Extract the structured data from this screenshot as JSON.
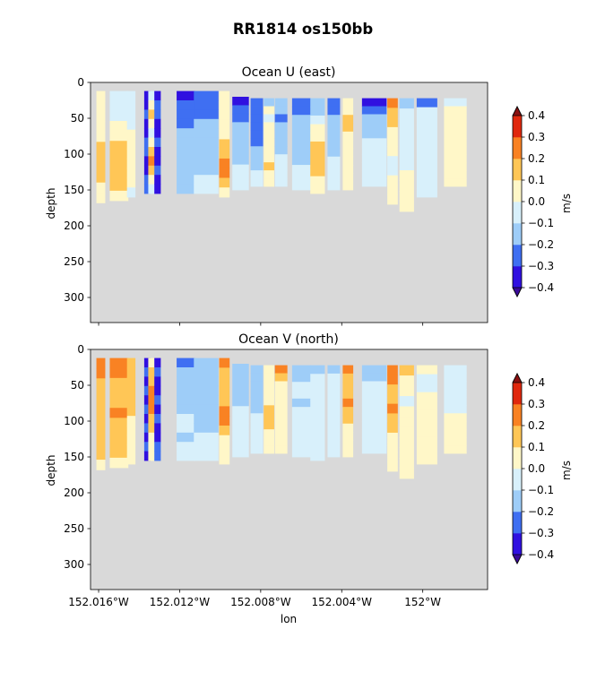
{
  "figure": {
    "title": "RR1814 os150bb"
  },
  "colors": {
    "background": "#d9d9d9",
    "levels": [
      {
        "lo": -0.4,
        "hi": -0.3,
        "color": "#3010e0"
      },
      {
        "lo": -0.3,
        "hi": -0.2,
        "color": "#3f6ff2"
      },
      {
        "lo": -0.2,
        "hi": -0.1,
        "color": "#9ecdf8"
      },
      {
        "lo": -0.1,
        "hi": 0.0,
        "color": "#d8f0fb"
      },
      {
        "lo": 0.0,
        "hi": 0.1,
        "color": "#fff7c8"
      },
      {
        "lo": 0.1,
        "hi": 0.2,
        "color": "#ffc656"
      },
      {
        "lo": 0.2,
        "hi": 0.3,
        "color": "#f98223"
      },
      {
        "lo": 0.3,
        "hi": 0.4,
        "color": "#e0280e"
      }
    ],
    "under": "#3a0a9a",
    "over": "#8a1010"
  },
  "chart_data": [
    {
      "type": "heatmap",
      "title": "Ocean U (east)",
      "xlabel": "",
      "ylabel": "depth",
      "colorbar_label": "m/s",
      "colorbar_ticks": [
        "0.4",
        "0.3",
        "0.2",
        "0.1",
        "0.0",
        "−0.1",
        "−0.2",
        "−0.3",
        "−0.4"
      ],
      "y_ticks": [
        "0",
        "50",
        "100",
        "150",
        "200",
        "250",
        "300"
      ],
      "ylim": [
        335,
        0
      ],
      "xlim": [
        -152.0164,
        -151.9968
      ],
      "x_ticks": [
        -152.016,
        -152.012,
        -152.008,
        -152.004,
        -152.0
      ],
      "x_tick_labels": [
        "",
        "",
        "",
        "",
        ""
      ],
      "profiles": [
        {
          "lon": -152.0159,
          "w": 0.00042,
          "top": 12,
          "bottom": 168,
          "values": [
            0.05,
            0.05,
            0.05,
            0.05,
            0.08,
            0.12,
            0.15,
            0.15,
            0.12,
            0.08,
            0.05
          ]
        },
        {
          "lon": -152.015,
          "w": 0.0009,
          "top": 12,
          "bottom": 165,
          "values": [
            -0.05,
            -0.05,
            -0.05,
            0.02,
            0.05,
            0.12,
            0.15,
            0.15,
            0.15,
            0.12,
            0.05
          ]
        },
        {
          "lon": -152.0144,
          "w": 0.0004,
          "top": 12,
          "bottom": 160,
          "values": [
            -0.05,
            -0.05,
            -0.05,
            -0.05,
            0.02,
            0.05,
            0.05,
            0.05,
            0.05,
            0.03,
            -0.02
          ]
        },
        {
          "lon": -152.0136,
          "w": 0.0003,
          "top": 12,
          "bottom": 155,
          "values": [
            -0.35,
            -0.35,
            -0.3,
            -0.35,
            -0.35,
            -0.3,
            -0.3,
            -0.35,
            -0.35,
            -0.3,
            -0.3
          ]
        },
        {
          "lon": -152.0134,
          "w": 0.0003,
          "top": 12,
          "bottom": 155,
          "values": [
            -0.1,
            0.05,
            0.1,
            0.05,
            -0.05,
            0.05,
            0.12,
            0.2,
            0.12,
            0.05,
            -0.05
          ]
        },
        {
          "lon": -152.0131,
          "w": 0.0003,
          "top": 12,
          "bottom": 155,
          "values": [
            -0.35,
            -0.3,
            -0.3,
            -0.35,
            -0.35,
            -0.3,
            -0.35,
            -0.35,
            -0.3,
            -0.35,
            -0.35
          ]
        },
        {
          "lon": -152.0117,
          "w": 0.0009,
          "top": 12,
          "bottom": 155,
          "values": [
            -0.35,
            -0.3,
            -0.25,
            -0.25,
            -0.15,
            -0.15,
            -0.15,
            -0.15,
            -0.15,
            -0.15,
            -0.15
          ]
        },
        {
          "lon": -152.0107,
          "w": 0.0012,
          "top": 12,
          "bottom": 155,
          "values": [
            -0.25,
            -0.25,
            -0.25,
            -0.2,
            -0.2,
            -0.15,
            -0.15,
            -0.15,
            -0.15,
            -0.1,
            -0.1
          ]
        },
        {
          "lon": -152.0098,
          "w": 0.0005,
          "top": 12,
          "bottom": 160,
          "values": [
            0.05,
            0.05,
            0.05,
            0.05,
            0.05,
            0.12,
            0.15,
            0.2,
            0.2,
            0.12,
            0.05
          ]
        },
        {
          "lon": -152.009,
          "w": 0.0008,
          "top": 20,
          "bottom": 150,
          "values": [
            -0.35,
            -0.25,
            -0.25,
            -0.2,
            -0.2,
            -0.15,
            -0.15,
            -0.15,
            -0.1,
            -0.1,
            -0.05
          ]
        },
        {
          "lon": -152.0082,
          "w": 0.0006,
          "top": 22,
          "bottom": 145,
          "values": [
            -0.3,
            -0.25,
            -0.25,
            -0.25,
            -0.25,
            -0.25,
            -0.15,
            -0.15,
            -0.15,
            -0.1,
            -0.05
          ]
        },
        {
          "lon": -152.0076,
          "w": 0.0005,
          "top": 22,
          "bottom": 145,
          "values": [
            -0.2,
            0.05,
            -0.05,
            0.02,
            0.05,
            0.05,
            0.05,
            0.08,
            0.12,
            0.05,
            0.02
          ]
        },
        {
          "lon": -152.007,
          "w": 0.0006,
          "top": 22,
          "bottom": 145,
          "values": [
            -0.2,
            -0.2,
            -0.25,
            -0.2,
            -0.15,
            -0.15,
            -0.15,
            -0.1,
            -0.1,
            -0.1,
            -0.05
          ]
        },
        {
          "lon": -152.006,
          "w": 0.0009,
          "top": 22,
          "bottom": 150,
          "values": [
            -0.3,
            -0.25,
            -0.15,
            -0.15,
            -0.15,
            -0.15,
            -0.15,
            -0.15,
            -0.1,
            -0.1,
            -0.05
          ]
        },
        {
          "lon": -152.0052,
          "w": 0.0007,
          "top": 22,
          "bottom": 155,
          "values": [
            -0.2,
            -0.15,
            -0.05,
            0.02,
            0.05,
            0.12,
            0.15,
            0.15,
            0.12,
            0.05,
            0.02
          ]
        },
        {
          "lon": -152.0044,
          "w": 0.0006,
          "top": 22,
          "bottom": 150,
          "values": [
            -0.3,
            -0.25,
            -0.2,
            -0.15,
            -0.15,
            -0.15,
            -0.15,
            -0.1,
            -0.1,
            -0.05,
            -0.05
          ]
        },
        {
          "lon": -152.0037,
          "w": 0.0005,
          "top": 22,
          "bottom": 150,
          "values": [
            0.02,
            0.08,
            0.12,
            0.15,
            0.08,
            0.05,
            0.05,
            0.05,
            0.05,
            0.03,
            0.02
          ]
        },
        {
          "lon": -152.0024,
          "w": 0.0012,
          "top": 22,
          "bottom": 145,
          "values": [
            -0.35,
            -0.25,
            -0.15,
            -0.15,
            -0.15,
            -0.1,
            -0.1,
            -0.1,
            -0.1,
            -0.05,
            -0.05
          ]
        },
        {
          "lon": -152.0015,
          "w": 0.0005,
          "top": 22,
          "bottom": 170,
          "values": [
            0.2,
            0.15,
            0.12,
            0.05,
            0.02,
            0.02,
            -0.05,
            -0.05,
            0.02,
            0.03,
            0.03
          ]
        },
        {
          "lon": -152.0008,
          "w": 0.0007,
          "top": 22,
          "bottom": 180,
          "values": [
            -0.2,
            -0.1,
            -0.1,
            -0.1,
            -0.05,
            -0.05,
            -0.05,
            0.02,
            0.05,
            0.05,
            0.05
          ]
        },
        {
          "lon": -151.9998,
          "w": 0.001,
          "top": 22,
          "bottom": 160,
          "values": [
            -0.25,
            -0.1,
            -0.05,
            -0.05,
            -0.05,
            -0.05,
            -0.05,
            -0.05,
            -0.05,
            -0.05,
            -0.05
          ]
        },
        {
          "lon": -151.9984,
          "w": 0.0011,
          "top": 22,
          "bottom": 145,
          "values": [
            -0.05,
            0.02,
            0.03,
            0.05,
            0.05,
            0.08,
            0.05,
            0.05,
            0.05,
            0.05,
            0.02
          ]
        }
      ]
    },
    {
      "type": "heatmap",
      "title": "Ocean V (north)",
      "xlabel": "lon",
      "ylabel": "depth",
      "colorbar_label": "m/s",
      "colorbar_ticks": [
        "0.4",
        "0.3",
        "0.2",
        "0.1",
        "0.0",
        "−0.1",
        "−0.2",
        "−0.3",
        "−0.4"
      ],
      "y_ticks": [
        "0",
        "50",
        "100",
        "150",
        "200",
        "250",
        "300"
      ],
      "ylim": [
        335,
        0
      ],
      "xlim": [
        -152.0164,
        -151.9968
      ],
      "x_ticks": [
        -152.016,
        -152.012,
        -152.008,
        -152.004,
        -152.0
      ],
      "x_tick_labels": [
        "152.016°W",
        "152.012°W",
        "152.008°W",
        "152.004°W",
        "152°W"
      ],
      "profiles": [
        {
          "lon": -152.0159,
          "w": 0.00042,
          "top": 12,
          "bottom": 168,
          "values": [
            0.22,
            0.2,
            0.18,
            0.15,
            0.15,
            0.15,
            0.15,
            0.12,
            0.12,
            0.1,
            0.05
          ]
        },
        {
          "lon": -152.015,
          "w": 0.0009,
          "top": 12,
          "bottom": 165,
          "values": [
            0.22,
            0.2,
            0.18,
            0.18,
            0.18,
            0.22,
            0.18,
            0.15,
            0.12,
            0.1,
            0.05
          ]
        },
        {
          "lon": -152.0144,
          "w": 0.0004,
          "top": 12,
          "bottom": 160,
          "values": [
            0.15,
            0.12,
            0.12,
            0.12,
            0.1,
            0.1,
            0.08,
            0.08,
            0.05,
            0.05,
            0.05
          ]
        },
        {
          "lon": -152.0136,
          "w": 0.0003,
          "top": 12,
          "bottom": 155,
          "values": [
            -0.35,
            -0.3,
            -0.35,
            -0.3,
            -0.35,
            -0.3,
            -0.35,
            -0.3,
            -0.35,
            -0.3,
            -0.35
          ]
        },
        {
          "lon": -152.0134,
          "w": 0.0003,
          "top": 12,
          "bottom": 155,
          "values": [
            0.05,
            0.12,
            0.15,
            0.2,
            0.25,
            0.2,
            0.15,
            0.12,
            0.08,
            0.05,
            0.02
          ]
        },
        {
          "lon": -152.0131,
          "w": 0.0003,
          "top": 12,
          "bottom": 155,
          "values": [
            -0.35,
            -0.3,
            -0.35,
            -0.35,
            -0.3,
            -0.35,
            -0.3,
            -0.35,
            -0.35,
            -0.3,
            -0.3
          ]
        },
        {
          "lon": -152.0117,
          "w": 0.0009,
          "top": 12,
          "bottom": 155,
          "values": [
            -0.25,
            -0.2,
            -0.15,
            -0.15,
            -0.15,
            -0.15,
            -0.1,
            -0.1,
            -0.15,
            -0.1,
            -0.1
          ]
        },
        {
          "lon": -152.0107,
          "w": 0.0012,
          "top": 12,
          "bottom": 155,
          "values": [
            -0.2,
            -0.15,
            -0.15,
            -0.15,
            -0.15,
            -0.15,
            -0.15,
            -0.15,
            -0.1,
            -0.1,
            -0.1
          ]
        },
        {
          "lon": -152.0098,
          "w": 0.0005,
          "top": 12,
          "bottom": 160,
          "values": [
            0.2,
            0.12,
            0.1,
            0.12,
            0.15,
            0.22,
            0.2,
            0.12,
            0.08,
            0.05,
            0.02
          ]
        },
        {
          "lon": -152.009,
          "w": 0.0008,
          "top": 20,
          "bottom": 150,
          "values": [
            -0.15,
            -0.15,
            -0.15,
            -0.15,
            -0.15,
            -0.1,
            -0.1,
            -0.1,
            -0.1,
            -0.1,
            -0.05
          ]
        },
        {
          "lon": -152.0082,
          "w": 0.0006,
          "top": 22,
          "bottom": 145,
          "values": [
            -0.15,
            -0.15,
            -0.15,
            -0.15,
            -0.15,
            -0.15,
            -0.1,
            -0.1,
            -0.1,
            -0.05,
            -0.05
          ]
        },
        {
          "lon": -152.0076,
          "w": 0.0005,
          "top": 22,
          "bottom": 145,
          "values": [
            0.05,
            0.05,
            0.05,
            0.05,
            0.08,
            0.12,
            0.15,
            0.12,
            0.08,
            0.05,
            0.02
          ]
        },
        {
          "lon": -152.007,
          "w": 0.0006,
          "top": 22,
          "bottom": 145,
          "values": [
            0.2,
            0.12,
            0.05,
            0.05,
            0.05,
            0.05,
            0.05,
            0.05,
            0.03,
            0.02,
            0.02
          ]
        },
        {
          "lon": -152.006,
          "w": 0.0009,
          "top": 22,
          "bottom": 150,
          "values": [
            -0.15,
            -0.15,
            -0.1,
            -0.1,
            -0.15,
            -0.1,
            -0.1,
            -0.1,
            -0.1,
            -0.05,
            -0.05
          ]
        },
        {
          "lon": -152.0052,
          "w": 0.0007,
          "top": 22,
          "bottom": 155,
          "values": [
            -0.2,
            -0.1,
            -0.05,
            -0.1,
            -0.05,
            -0.05,
            -0.05,
            -0.05,
            -0.05,
            -0.05,
            -0.05
          ]
        },
        {
          "lon": -152.0044,
          "w": 0.0006,
          "top": 22,
          "bottom": 150,
          "values": [
            -0.15,
            -0.1,
            -0.1,
            -0.1,
            -0.05,
            -0.05,
            -0.05,
            -0.05,
            -0.05,
            -0.05,
            -0.05
          ]
        },
        {
          "lon": -152.0037,
          "w": 0.0005,
          "top": 22,
          "bottom": 150,
          "values": [
            0.2,
            0.15,
            0.12,
            0.15,
            0.22,
            0.15,
            0.12,
            0.08,
            0.05,
            0.05,
            0.02
          ]
        },
        {
          "lon": -152.0024,
          "w": 0.0012,
          "top": 22,
          "bottom": 145,
          "values": [
            -0.15,
            -0.15,
            -0.1,
            -0.1,
            -0.05,
            -0.05,
            -0.05,
            -0.05,
            -0.05,
            -0.05,
            -0.05
          ]
        },
        {
          "lon": -152.0015,
          "w": 0.0005,
          "top": 22,
          "bottom": 170,
          "values": [
            0.25,
            0.2,
            0.15,
            0.15,
            0.2,
            0.15,
            0.12,
            0.08,
            0.05,
            0.05,
            0.02
          ]
        },
        {
          "lon": -152.0008,
          "w": 0.0007,
          "top": 22,
          "bottom": 180,
          "values": [
            0.15,
            0.05,
            0.02,
            -0.05,
            0.05,
            0.05,
            0.05,
            0.05,
            0.05,
            0.05,
            0.05
          ]
        },
        {
          "lon": -151.9998,
          "w": 0.001,
          "top": 22,
          "bottom": 160,
          "values": [
            0.02,
            -0.05,
            -0.05,
            0.03,
            0.05,
            0.05,
            0.05,
            0.05,
            0.05,
            0.05,
            0.05
          ]
        },
        {
          "lon": -151.9984,
          "w": 0.0011,
          "top": 22,
          "bottom": 145,
          "values": [
            -0.05,
            -0.05,
            -0.05,
            -0.05,
            -0.05,
            -0.05,
            0.02,
            0.05,
            0.05,
            0.05,
            0.05
          ]
        }
      ]
    }
  ]
}
